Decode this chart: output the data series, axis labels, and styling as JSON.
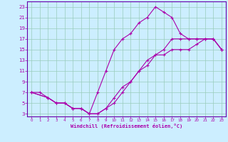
{
  "xlabel": "Windchill (Refroidissement éolien,°C)",
  "background_color": "#cceeff",
  "grid_color": "#99ccbb",
  "line_color": "#aa00aa",
  "spine_color": "#6600aa",
  "xlim": [
    -0.5,
    23.5
  ],
  "ylim": [
    2.5,
    24
  ],
  "xticks": [
    0,
    1,
    2,
    3,
    4,
    5,
    6,
    7,
    8,
    9,
    10,
    11,
    12,
    13,
    14,
    15,
    16,
    17,
    18,
    19,
    20,
    21,
    22,
    23
  ],
  "yticks": [
    3,
    5,
    7,
    9,
    11,
    13,
    15,
    17,
    19,
    21,
    23
  ],
  "line1_x": [
    0,
    1,
    2,
    3,
    4,
    5,
    6,
    7,
    8,
    9,
    10,
    11,
    12,
    13,
    14,
    15,
    16,
    17,
    18,
    19,
    20,
    21,
    22,
    23
  ],
  "line1_y": [
    7,
    7,
    6,
    5,
    5,
    4,
    4,
    3,
    7,
    11,
    15,
    17,
    18,
    20,
    21,
    23,
    22,
    21,
    18,
    17,
    17,
    17,
    17,
    15
  ],
  "line2_x": [
    0,
    2,
    3,
    4,
    5,
    6,
    7,
    8,
    9,
    10,
    11,
    12,
    13,
    14,
    15,
    16,
    17,
    18,
    19,
    20,
    21,
    22,
    23
  ],
  "line2_y": [
    7,
    6,
    5,
    5,
    4,
    4,
    3,
    3,
    4,
    6,
    8,
    9,
    11,
    13,
    14,
    14,
    15,
    15,
    15,
    16,
    17,
    17,
    15
  ],
  "line3_x": [
    0,
    2,
    3,
    4,
    5,
    6,
    7,
    8,
    9,
    10,
    11,
    12,
    13,
    14,
    15,
    16,
    17,
    18,
    19,
    20,
    21,
    22,
    23
  ],
  "line3_y": [
    7,
    6,
    5,
    5,
    4,
    4,
    3,
    3,
    4,
    5,
    7,
    9,
    11,
    12,
    14,
    15,
    17,
    17,
    17,
    17,
    17,
    17,
    15
  ]
}
